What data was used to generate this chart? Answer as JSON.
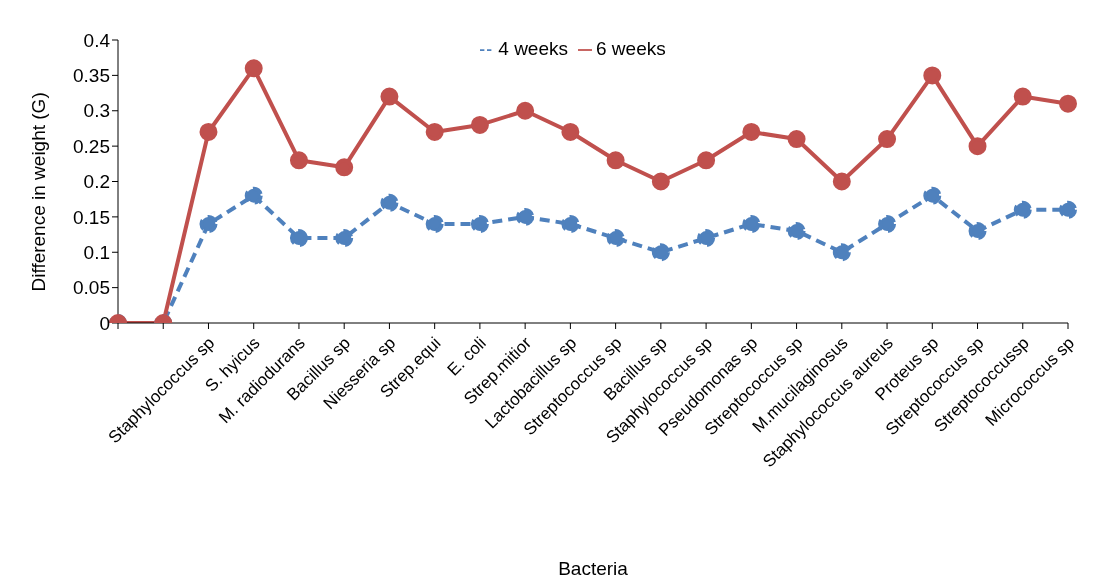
{
  "chart_data": {
    "type": "line",
    "xlabel": "Bacteria",
    "ylabel": "Difference in weight (G)",
    "categories": [
      null,
      null,
      "Staphylococcus sp",
      "S. hyicus",
      "M. radiodurans",
      "Bacillus sp",
      "Niesseria sp",
      "Strep.equi",
      "E. coli",
      "Strep.mitior",
      "Lactobacillus sp",
      "Streptococcus sp",
      "Bacillus sp",
      "Staphylococcus sp",
      "Pseudomonas sp",
      "Streptococcus sp",
      "M.mucilaginosus",
      "Staphylococcus aureus",
      "Proteus sp",
      "Streptococcus sp",
      "Streptococcussp",
      "Micrococcus sp"
    ],
    "series": [
      {
        "name": "4 weeks",
        "color": "#4f81bd",
        "line_style": "dashed",
        "values": [
          0,
          0,
          0.14,
          0.18,
          0.12,
          0.12,
          0.17,
          0.14,
          0.14,
          0.15,
          0.14,
          0.12,
          0.1,
          0.12,
          0.14,
          0.13,
          0.1,
          0.14,
          0.18,
          0.13,
          0.16,
          0.16
        ]
      },
      {
        "name": "6 weeks",
        "color": "#c0504d",
        "line_style": "solid",
        "values": [
          0,
          0,
          0.27,
          0.36,
          0.23,
          0.22,
          0.32,
          0.27,
          0.28,
          0.3,
          0.27,
          0.23,
          0.2,
          0.23,
          0.27,
          0.26,
          0.2,
          0.26,
          0.35,
          0.25,
          0.32,
          0.31
        ]
      }
    ],
    "ylim": [
      0,
      0.4
    ],
    "yticks": [
      0,
      0.05,
      0.1,
      0.15,
      0.2,
      0.25,
      0.3,
      0.35,
      0.4
    ],
    "grid": false,
    "legend": "top",
    "marker": "circle"
  }
}
